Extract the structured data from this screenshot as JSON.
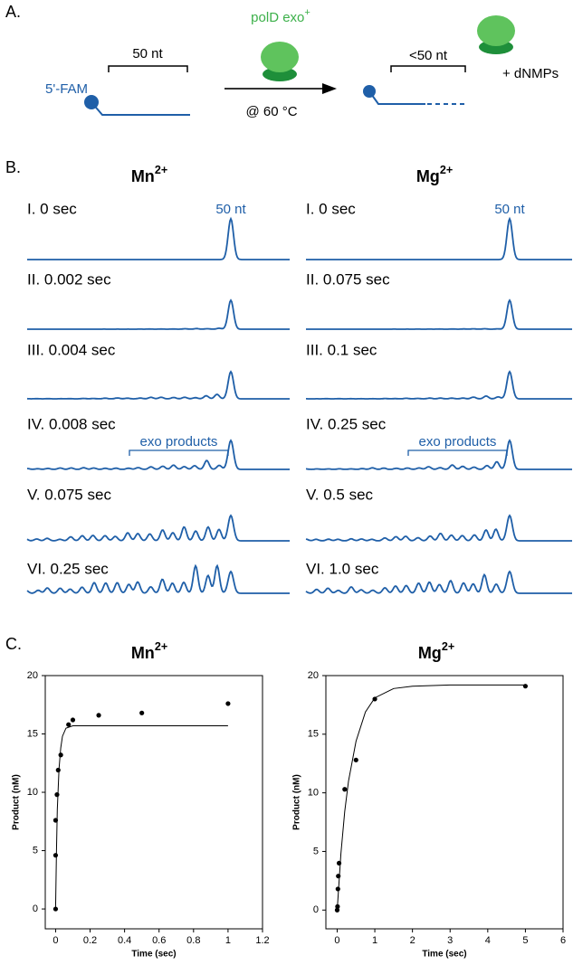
{
  "panel_labels": [
    "A.",
    "B.",
    "C."
  ],
  "schematic": {
    "left_label": "5'-FAM",
    "left_length": "50 nt",
    "enzyme": "polD exo",
    "enzyme_sup": "+",
    "condition": "@ 60 °C",
    "right_length": "<50 nt",
    "products": "+ dNMPs"
  },
  "traces": {
    "columns": [
      {
        "metal": "Mn",
        "metal_sup": "2+",
        "peak_label": "50 nt",
        "products_label": "exo products",
        "rows": [
          "I. 0 sec",
          "II. 0.002 sec",
          "III. 0.004 sec",
          "IV. 0.008 sec",
          "V. 0.075 sec",
          "VI. 0.25 sec"
        ]
      },
      {
        "metal": "Mg",
        "metal_sup": "2+",
        "peak_label": "50 nt",
        "products_label": "exo products",
        "rows": [
          "I. 0 sec",
          "II. 0.075 sec",
          "III. 0.1 sec",
          "IV. 0.25 sec",
          "V. 0.5 sec",
          "VI. 1.0 sec"
        ]
      }
    ]
  },
  "chart_data": [
    {
      "type": "scatter",
      "title": "Mn",
      "title_sup": "2+",
      "x_label": "Time (sec)",
      "y_label": "Product (nM)",
      "xlim": [
        -0.06,
        1.2
      ],
      "xticks": [
        0,
        0.2,
        0.4,
        0.6,
        0.8,
        1,
        1.2
      ],
      "ylim": [
        -1.7,
        20
      ],
      "yticks": [
        0,
        5,
        10,
        15,
        20
      ],
      "series": [
        {
          "color": "#000000",
          "line": false,
          "x": [
            0,
            0,
            0,
            0.008,
            0.015,
            0.03,
            0.075,
            0.1,
            0.25,
            0.5,
            1
          ],
          "values": [
            0,
            4.6,
            7.6,
            9.8,
            11.9,
            13.2,
            15.8,
            16.2,
            16.6,
            16.8,
            17.6
          ]
        },
        {
          "color": "#000000",
          "line": true,
          "x": [
            0,
            0.005,
            0.01,
            0.02,
            0.03,
            0.04,
            0.06,
            0.1,
            1
          ],
          "values": [
            0,
            5,
            8.5,
            12,
            13.8,
            14.8,
            15.5,
            15.7,
            15.7
          ]
        }
      ]
    },
    {
      "type": "scatter",
      "title": "Mg",
      "title_sup": "2+",
      "x_label": "Time (sec)",
      "y_label": "Product (nM)",
      "xlim": [
        -0.3,
        6
      ],
      "xticks": [
        0,
        1,
        2,
        3,
        4,
        5,
        6
      ],
      "ylim": [
        -1.6,
        20
      ],
      "yticks": [
        0,
        5,
        10,
        15,
        20
      ],
      "series": [
        {
          "color": "#000000",
          "line": false,
          "x": [
            0,
            0.01,
            0.02,
            0.03,
            0.05,
            0.2,
            0.5,
            1,
            5
          ],
          "values": [
            0,
            0.3,
            1.8,
            2.9,
            4.0,
            10.3,
            12.8,
            18,
            19.1
          ]
        },
        {
          "color": "#000000",
          "line": true,
          "x": [
            0,
            0.1,
            0.2,
            0.3,
            0.5,
            0.75,
            1,
            1.5,
            2,
            3,
            5
          ],
          "values": [
            0,
            4.8,
            8.4,
            11.0,
            14.4,
            16.9,
            18.1,
            18.9,
            19.1,
            19.2,
            19.2
          ]
        }
      ]
    }
  ]
}
